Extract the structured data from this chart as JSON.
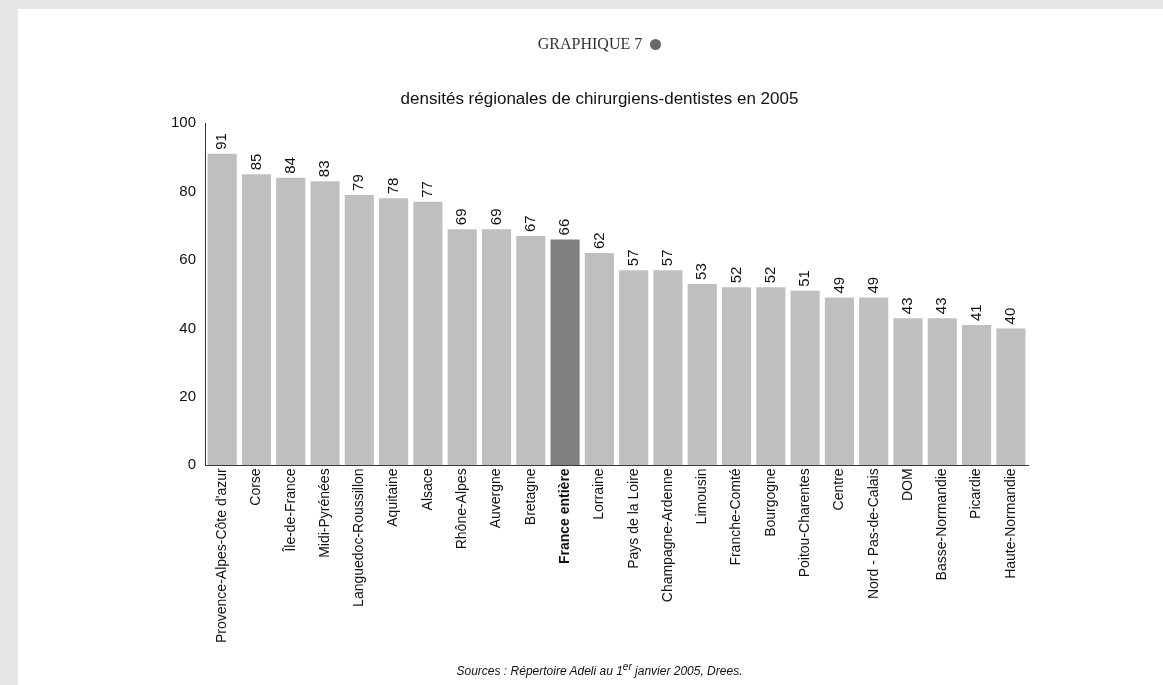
{
  "chart_data": {
    "type": "bar",
    "title": "GRAPHIQUE 7",
    "subtitle": "densités régionales de chirurgiens-dentistes en 2005",
    "categories": [
      "Provence-Alpes-Côte d'azur",
      "Corse",
      "Île-de-France",
      "Midi-Pyrénées",
      "Languedoc-Roussillon",
      "Aquitaine",
      "Alsace",
      "Rhône-Alpes",
      "Auvergne",
      "Bretagne",
      "France entière",
      "Lorraine",
      "Pays de la Loire",
      "Champagne-Ardenne",
      "Limousin",
      "Franche-Comté",
      "Bourgogne",
      "Poitou-Charentes",
      "Centre",
      "Nord - Pas-de-Calais",
      "DOM",
      "Basse-Normandie",
      "Picardie",
      "Haute-Normandie"
    ],
    "values": [
      91,
      85,
      84,
      83,
      79,
      78,
      77,
      69,
      69,
      67,
      66,
      62,
      57,
      57,
      53,
      52,
      52,
      51,
      49,
      49,
      43,
      43,
      41,
      40
    ],
    "colors": [
      "#bfbfbf",
      "#bfbfbf",
      "#bfbfbf",
      "#bfbfbf",
      "#bfbfbf",
      "#bfbfbf",
      "#bfbfbf",
      "#bfbfbf",
      "#bfbfbf",
      "#bfbfbf",
      "#808080",
      "#bfbfbf",
      "#bfbfbf",
      "#bfbfbf",
      "#bfbfbf",
      "#bfbfbf",
      "#bfbfbf",
      "#bfbfbf",
      "#bfbfbf",
      "#bfbfbf",
      "#bfbfbf",
      "#bfbfbf",
      "#bfbfbf",
      "#bfbfbf"
    ],
    "ylim": [
      0,
      100
    ],
    "yticks": [
      0,
      20,
      40,
      60,
      80,
      100
    ],
    "grid": false,
    "legend": false,
    "data_labels": true,
    "annotations": [
      "Sources : Répertoire Adeli au 1$^{er}$ janvier 2005, Drees."
    ]
  }
}
